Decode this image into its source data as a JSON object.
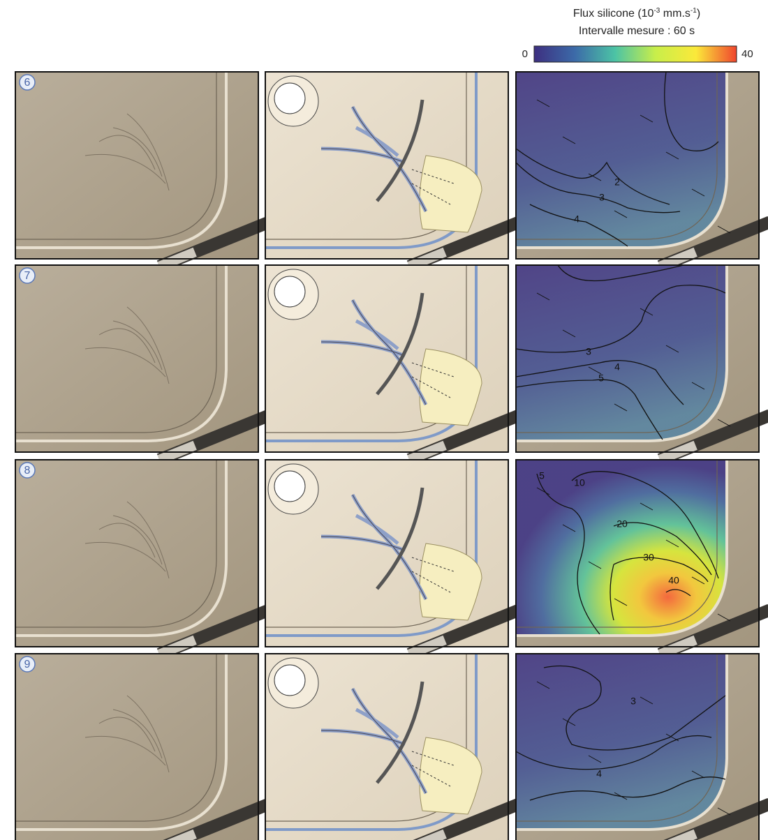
{
  "colorbar": {
    "title": [
      "Flux silicone (10",
      "-3",
      " mm.s",
      "-1",
      ")"
    ],
    "subtitle": "Intervalle mesure : 60 s",
    "min": 0,
    "max": 40
  },
  "rows": [
    {
      "label": "6",
      "contours": [
        "2",
        "3",
        "4"
      ]
    },
    {
      "label": "7",
      "contours": [
        "3",
        "4",
        "5"
      ]
    },
    {
      "label": "8",
      "contours": [
        "5",
        "10",
        "20",
        "30",
        "40"
      ]
    },
    {
      "label": "9",
      "contours": [
        "3",
        "4"
      ]
    }
  ]
}
